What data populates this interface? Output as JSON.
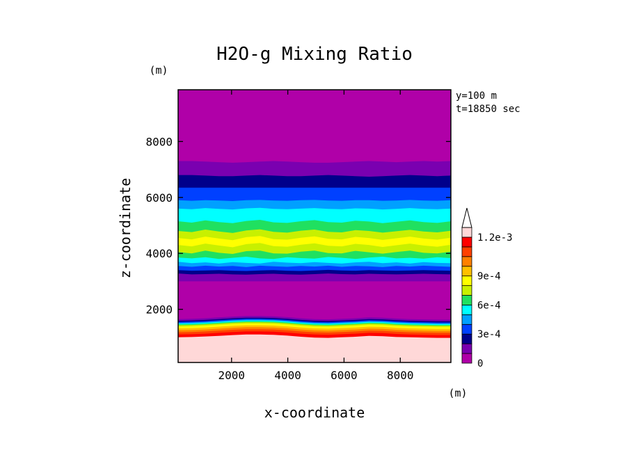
{
  "chart_data": {
    "type": "heatmap",
    "subtype": "filled-contour",
    "title": "H2O-g Mixing Ratio",
    "xlabel": "x-coordinate",
    "ylabel": "z-coordinate",
    "x_unit": "(m)",
    "y_unit": "(m)",
    "annotations": [
      "y=100 m",
      "t=18850 sec"
    ],
    "xlim": [
      100,
      9800
    ],
    "ylim": [
      100,
      9850
    ],
    "xticks": [
      2000,
      4000,
      6000,
      8000
    ],
    "yticks": [
      2000,
      4000,
      6000,
      8000
    ],
    "xtick_labels": [
      "2000",
      "4000",
      "6000",
      "8000"
    ],
    "ytick_labels": [
      "2000",
      "4000",
      "6000",
      "8000"
    ],
    "colorbar": {
      "tick_labels": [
        "0",
        "3e-4",
        "6e-4",
        "9e-4",
        "1.2e-3"
      ],
      "tick_values": [
        0,
        0.0003,
        0.0006,
        0.0009,
        0.0012
      ],
      "levels": [
        0,
        0.0001,
        0.0002,
        0.0003,
        0.0004,
        0.0005,
        0.0006,
        0.0007,
        0.0008,
        0.0009,
        0.001,
        0.0011,
        0.0012
      ],
      "colors": [
        "#b000a8",
        "#7a00b0",
        "#00008b",
        "#0040ff",
        "#00a0ff",
        "#00ffff",
        "#20e060",
        "#c8f000",
        "#ffff00",
        "#ffc000",
        "#ff8000",
        "#ff4000",
        "#ff0000",
        "#ffd8d8"
      ],
      "extend": "max"
    },
    "bands": [
      {
        "level": 0.00125,
        "top": [
          1000,
          1010,
          1030,
          1050,
          1080,
          1100,
          1100,
          1090,
          1060,
          1020,
          990,
          980,
          1000,
          1020,
          1050,
          1040,
          1010,
          1000,
          990,
          980,
          980
        ]
      },
      {
        "level": 0.0012,
        "top": [
          1100,
          1110,
          1130,
          1160,
          1190,
          1210,
          1210,
          1200,
          1170,
          1130,
          1100,
          1090,
          1110,
          1130,
          1160,
          1150,
          1120,
          1100,
          1090,
          1080,
          1080
        ]
      },
      {
        "level": 0.0011,
        "top": [
          1180,
          1190,
          1210,
          1240,
          1270,
          1290,
          1290,
          1280,
          1250,
          1210,
          1180,
          1170,
          1190,
          1210,
          1240,
          1230,
          1200,
          1180,
          1170,
          1160,
          1160
        ]
      },
      {
        "level": 0.001,
        "top": [
          1250,
          1260,
          1280,
          1310,
          1340,
          1360,
          1360,
          1350,
          1320,
          1280,
          1250,
          1240,
          1260,
          1280,
          1310,
          1300,
          1270,
          1250,
          1240,
          1230,
          1230
        ]
      },
      {
        "level": 0.0009,
        "top": [
          1320,
          1330,
          1350,
          1380,
          1410,
          1430,
          1430,
          1420,
          1390,
          1350,
          1320,
          1310,
          1330,
          1350,
          1380,
          1370,
          1340,
          1320,
          1310,
          1300,
          1300
        ]
      },
      {
        "level": 0.0008,
        "top": [
          1380,
          1390,
          1410,
          1440,
          1470,
          1490,
          1490,
          1480,
          1450,
          1410,
          1380,
          1370,
          1390,
          1410,
          1440,
          1430,
          1400,
          1380,
          1370,
          1360,
          1360
        ]
      },
      {
        "level": 0.0007,
        "top": [
          1430,
          1440,
          1460,
          1490,
          1520,
          1540,
          1540,
          1530,
          1500,
          1460,
          1430,
          1420,
          1440,
          1460,
          1490,
          1480,
          1450,
          1430,
          1420,
          1410,
          1410
        ]
      },
      {
        "level": 0.0006,
        "top": [
          1460,
          1470,
          1490,
          1520,
          1550,
          1570,
          1570,
          1560,
          1530,
          1490,
          1460,
          1450,
          1470,
          1490,
          1520,
          1510,
          1480,
          1460,
          1450,
          1440,
          1440
        ]
      },
      {
        "level": 0.0005,
        "top": [
          1490,
          1500,
          1520,
          1550,
          1580,
          1600,
          1600,
          1590,
          1560,
          1520,
          1490,
          1480,
          1500,
          1520,
          1550,
          1540,
          1510,
          1490,
          1480,
          1470,
          1470
        ]
      },
      {
        "level": 0.0004,
        "top": [
          1520,
          1530,
          1550,
          1580,
          1610,
          1630,
          1630,
          1620,
          1590,
          1550,
          1520,
          1510,
          1530,
          1550,
          1580,
          1570,
          1540,
          1520,
          1510,
          1500,
          1500
        ]
      },
      {
        "level": 0.0003,
        "top": [
          1550,
          1560,
          1580,
          1610,
          1640,
          1660,
          1660,
          1650,
          1620,
          1580,
          1550,
          1540,
          1560,
          1580,
          1610,
          1600,
          1570,
          1550,
          1540,
          1530,
          1530
        ]
      },
      {
        "level": 0.0002,
        "top": [
          1590,
          1600,
          1620,
          1650,
          1680,
          1700,
          1700,
          1690,
          1660,
          1620,
          1590,
          1580,
          1600,
          1620,
          1650,
          1640,
          1610,
          1590,
          1580,
          1570,
          1570
        ]
      },
      {
        "level": 0.0001,
        "top": [
          1650,
          1660,
          1680,
          1710,
          1740,
          1760,
          1760,
          1750,
          1720,
          1680,
          1650,
          1640,
          1660,
          1680,
          1710,
          1700,
          1670,
          1650,
          1640,
          1630,
          1630
        ]
      },
      {
        "level": 0,
        "top": [
          3000,
          3000,
          3000,
          3000,
          3000,
          3000,
          3000,
          3000,
          3000,
          3000,
          3000,
          3000,
          3000,
          3000,
          3000,
          3000,
          3000,
          3000,
          3000,
          3000,
          3000
        ]
      },
      {
        "level": 0.0001,
        "top": [
          3280,
          3250,
          3260,
          3270,
          3250,
          3240,
          3260,
          3270,
          3250,
          3240,
          3260,
          3280,
          3260,
          3250,
          3270,
          3260,
          3250,
          3260,
          3270,
          3260,
          3250
        ]
      },
      {
        "level": 0.0002,
        "top": [
          3400,
          3380,
          3390,
          3400,
          3380,
          3370,
          3390,
          3400,
          3380,
          3370,
          3390,
          3410,
          3390,
          3380,
          3400,
          3390,
          3380,
          3390,
          3400,
          3390,
          3380
        ]
      },
      {
        "level": 0.0003,
        "top": [
          3550,
          3520,
          3560,
          3530,
          3550,
          3510,
          3560,
          3540,
          3520,
          3550,
          3530,
          3560,
          3520,
          3550,
          3540,
          3510,
          3550,
          3530,
          3560,
          3540,
          3520
        ]
      },
      {
        "level": 0.0004,
        "top": [
          3700,
          3650,
          3680,
          3640,
          3690,
          3660,
          3640,
          3700,
          3670,
          3650,
          3690,
          3660,
          3640,
          3680,
          3700,
          3650,
          3680,
          3640,
          3690,
          3660,
          3650
        ]
      },
      {
        "level": 0.0005,
        "top": [
          3850,
          3820,
          3860,
          3800,
          3840,
          3880,
          3820,
          3800,
          3860,
          3830,
          3810,
          3870,
          3840,
          3800,
          3850,
          3880,
          3820,
          3840,
          3810,
          3860,
          3830
        ]
      },
      {
        "level": 0.0006,
        "top": [
          4050,
          4000,
          4100,
          4020,
          3980,
          4080,
          4100,
          4000,
          3990,
          4060,
          4100,
          4010,
          4000,
          4090,
          4040,
          3990,
          4050,
          4100,
          4020,
          4000,
          4060
        ]
      },
      {
        "level": 0.0007,
        "top": [
          4300,
          4250,
          4350,
          4280,
          4220,
          4330,
          4370,
          4260,
          4240,
          4310,
          4360,
          4270,
          4250,
          4340,
          4300,
          4230,
          4290,
          4350,
          4280,
          4240,
          4310
        ]
      },
      {
        "level": 0.0008,
        "top": [
          4550,
          4500,
          4600,
          4530,
          4470,
          4580,
          4620,
          4510,
          4490,
          4560,
          4610,
          4520,
          4500,
          4590,
          4550,
          4480,
          4540,
          4600,
          4530,
          4490,
          4560
        ]
      },
      {
        "level": 0.0007,
        "top": [
          4800,
          4760,
          4850,
          4780,
          4730,
          4820,
          4860,
          4770,
          4740,
          4810,
          4850,
          4770,
          4750,
          4830,
          4800,
          4740,
          4790,
          4840,
          4780,
          4750,
          4810
        ]
      },
      {
        "level": 0.0006,
        "top": [
          5150,
          5100,
          5180,
          5120,
          5080,
          5160,
          5200,
          5110,
          5090,
          5150,
          5190,
          5120,
          5100,
          5170,
          5140,
          5080,
          5130,
          5180,
          5120,
          5090,
          5150
        ]
      },
      {
        "level": 0.0005,
        "top": [
          5600,
          5580,
          5620,
          5590,
          5570,
          5610,
          5630,
          5590,
          5580,
          5600,
          5620,
          5590,
          5580,
          5610,
          5600,
          5570,
          5590,
          5620,
          5590,
          5580,
          5600
        ]
      },
      {
        "level": 0.0004,
        "top": [
          5900,
          5880,
          5900,
          5890,
          5870,
          5900,
          5910,
          5890,
          5880,
          5900,
          5910,
          5890,
          5880,
          5900,
          5900,
          5880,
          5890,
          5910,
          5890,
          5880,
          5900
        ]
      },
      {
        "level": 0.0003,
        "top": [
          6350,
          6350,
          6350,
          6350,
          6350,
          6350,
          6350,
          6350,
          6350,
          6350,
          6350,
          6350,
          6350,
          6350,
          6350,
          6350,
          6350,
          6350,
          6350,
          6350,
          6350
        ]
      },
      {
        "level": 0.0002,
        "top": [
          6800,
          6800,
          6780,
          6760,
          6760,
          6780,
          6800,
          6780,
          6760,
          6760,
          6780,
          6800,
          6780,
          6760,
          6740,
          6760,
          6780,
          6800,
          6780,
          6760,
          6780
        ]
      },
      {
        "level": 0.0001,
        "top": [
          7300,
          7300,
          7280,
          7260,
          7240,
          7260,
          7280,
          7300,
          7280,
          7260,
          7240,
          7240,
          7260,
          7280,
          7300,
          7280,
          7260,
          7280,
          7300,
          7280,
          7300
        ]
      },
      {
        "level": 0,
        "top": [
          8000,
          7990,
          7980,
          7980,
          7990,
          8010,
          8040,
          8060,
          8050,
          8020,
          7990,
          7970,
          7950,
          7940,
          7930,
          7920,
          7920,
          7930,
          7940,
          7960,
          8000
        ]
      },
      {
        "level": 0,
        "top": [
          8700,
          8680,
          8650,
          8630,
          8620,
          8640,
          8660,
          8700,
          8750,
          8820,
          8880,
          8900,
          8880,
          8850,
          8800,
          8750,
          8700,
          8650,
          8630,
          8650,
          8700
        ]
      },
      {
        "level": 0,
        "top": [
          9850,
          9850,
          9850,
          9850,
          9850,
          9850,
          9850,
          9850,
          9850,
          9850,
          9850,
          9850,
          9850,
          9850,
          9850,
          9850,
          9850,
          9850,
          9850,
          9850,
          9850
        ]
      }
    ],
    "band_x": [
      100,
      585,
      1070,
      1555,
      2040,
      2525,
      3010,
      3495,
      3980,
      4465,
      4950,
      5435,
      5920,
      6405,
      6890,
      7375,
      7860,
      8345,
      8830,
      9315,
      9800
    ]
  }
}
